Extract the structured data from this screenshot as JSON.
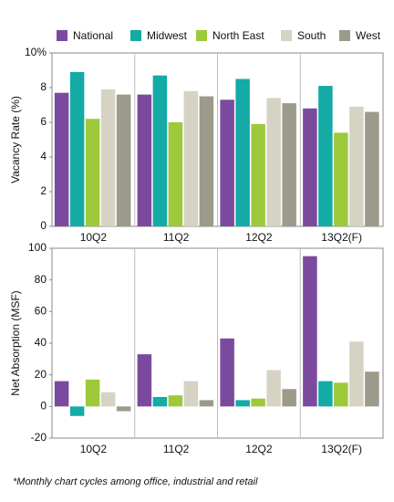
{
  "chart_data": [
    {
      "type": "bar",
      "y_label": "Vacancy Rate (%)",
      "categories": [
        "10Q2",
        "11Q2",
        "12Q2",
        "13Q2(F)"
      ],
      "series": [
        {
          "name": "National",
          "color": "#7b4a9e",
          "values": [
            7.7,
            7.6,
            7.3,
            6.8
          ]
        },
        {
          "name": "Midwest",
          "color": "#14aaa6",
          "values": [
            8.9,
            8.7,
            8.5,
            8.1
          ]
        },
        {
          "name": "North East",
          "color": "#9dc93b",
          "values": [
            6.2,
            6.0,
            5.9,
            5.4
          ]
        },
        {
          "name": "South",
          "color": "#d6d3c4",
          "values": [
            7.9,
            7.8,
            7.4,
            6.9
          ]
        },
        {
          "name": "West",
          "color": "#9c9b8b",
          "values": [
            7.6,
            7.5,
            7.1,
            6.6
          ]
        }
      ],
      "ylim": [
        0,
        10
      ],
      "yticks": [
        0,
        2,
        4,
        6,
        8,
        {
          "value": 10,
          "label": "10%"
        }
      ]
    },
    {
      "type": "bar",
      "y_label": "Net Absorption (MSF)",
      "categories": [
        "10Q2",
        "11Q2",
        "12Q2",
        "13Q2(F)"
      ],
      "series": [
        {
          "color": "#7b4a9e",
          "values": [
            16,
            33,
            43,
            95
          ]
        },
        {
          "color": "#14aaa6",
          "values": [
            -6,
            6,
            4,
            16
          ]
        },
        {
          "color": "#9dc93b",
          "values": [
            17,
            7,
            5,
            15
          ]
        },
        {
          "color": "#d6d3c4",
          "values": [
            9,
            16,
            23,
            41
          ]
        },
        {
          "color": "#9c9b8b",
          "values": [
            -3,
            4,
            11,
            22
          ]
        }
      ],
      "ylim": [
        -20,
        100
      ],
      "yticks": [
        -20,
        0,
        20,
        40,
        60,
        80,
        100
      ]
    }
  ],
  "footnote": "*Monthly chart cycles among office, industrial and retail"
}
